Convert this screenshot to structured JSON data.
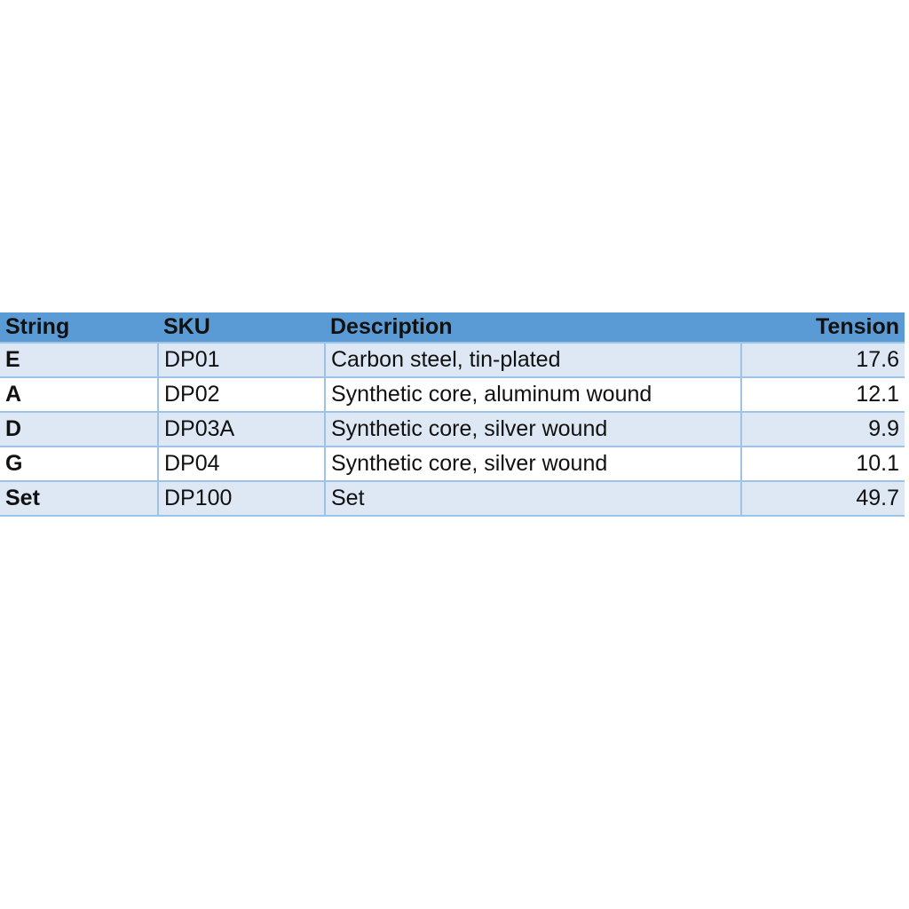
{
  "table": {
    "headers": [
      "String",
      "SKU",
      "Description",
      "Tension"
    ],
    "rows": [
      [
        "E",
        "DP01",
        "Carbon steel, tin-plated",
        "17.6"
      ],
      [
        "A",
        "DP02",
        "Synthetic core, aluminum wound",
        "12.1"
      ],
      [
        "D",
        "DP03A",
        "Synthetic core, silver wound",
        "9.9"
      ],
      [
        "G",
        "DP04",
        "Synthetic core, silver wound",
        "10.1"
      ],
      [
        "Set",
        "DP100",
        "Set",
        "49.7"
      ]
    ]
  },
  "colors": {
    "header_bg": "#5b9bd5",
    "band_bg": "#dde8f4",
    "border": "#9dc3e6"
  }
}
